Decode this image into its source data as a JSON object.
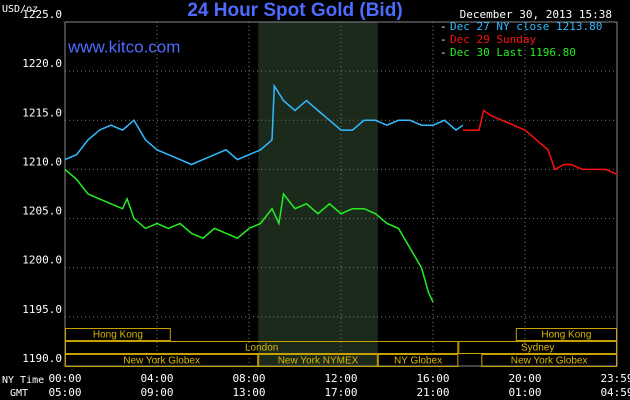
{
  "chart_data": {
    "type": "line",
    "title": "24 Hour Spot Gold (Bid)",
    "timestamp": "December 30, 2013 15:38",
    "website": "www.kitco.com",
    "y_label": "USD/oz",
    "x_label": "NY Time",
    "x2_label": "GMT",
    "xlim": [
      0,
      24
    ],
    "ylim": [
      1190,
      1225
    ],
    "xticks": [
      {
        "value": 0,
        "label": "00:00"
      },
      {
        "value": 4,
        "label": "04:00"
      },
      {
        "value": 8,
        "label": "08:00"
      },
      {
        "value": 12,
        "label": "12:00"
      },
      {
        "value": 16,
        "label": "16:00"
      },
      {
        "value": 20,
        "label": "20:00"
      },
      {
        "value": 24,
        "label": "23:59"
      }
    ],
    "x2ticks": [
      {
        "value": 0,
        "label": "05:00"
      },
      {
        "value": 4,
        "label": "09:00"
      },
      {
        "value": 8,
        "label": "13:00"
      },
      {
        "value": 12,
        "label": "17:00"
      },
      {
        "value": 16,
        "label": "21:00"
      },
      {
        "value": 20,
        "label": "01:00"
      },
      {
        "value": 24,
        "label": "04:59"
      }
    ],
    "yticks": [
      {
        "value": 1190,
        "label": "1190.0"
      },
      {
        "value": 1195,
        "label": "1195.0"
      },
      {
        "value": 1200,
        "label": "1200.0"
      },
      {
        "value": 1205,
        "label": "1205.0"
      },
      {
        "value": 1210,
        "label": "1210.0"
      },
      {
        "value": 1215,
        "label": "1215.0"
      },
      {
        "value": 1220,
        "label": "1220.0"
      },
      {
        "value": 1225,
        "label": "1225.0"
      }
    ],
    "grid": true,
    "shaded_x": [
      8.4,
      13.6
    ],
    "series": [
      {
        "name": "Dec 27 NY close 1213.80",
        "color": "#33bbff",
        "x": [
          0,
          0.5,
          1,
          1.5,
          2,
          2.5,
          3,
          3.5,
          4,
          4.5,
          5,
          5.5,
          6,
          6.5,
          7,
          7.5,
          8,
          8.5,
          9,
          9.1,
          9.5,
          10,
          10.5,
          11,
          11.5,
          12,
          12.5,
          13,
          13.5,
          14,
          14.5,
          15,
          15.5,
          16,
          16.5,
          17,
          17.3
        ],
        "values": [
          1211,
          1211.5,
          1213,
          1214,
          1214.5,
          1214,
          1215,
          1213,
          1212,
          1211.5,
          1211,
          1210.5,
          1211,
          1211.5,
          1212,
          1211,
          1211.5,
          1212,
          1213,
          1218.5,
          1217,
          1216,
          1217,
          1216,
          1215,
          1214,
          1214,
          1215,
          1215,
          1214.5,
          1215,
          1215,
          1214.5,
          1214.5,
          1215,
          1214,
          1214.5
        ]
      },
      {
        "name": "Dec 29 Sunday",
        "color": "#ff1010",
        "x": [
          17.3,
          18,
          18.2,
          18.5,
          19,
          19.5,
          20,
          20.5,
          21,
          21.3,
          21.7,
          22,
          22.5,
          23,
          23.5,
          24
        ],
        "values": [
          1214,
          1214,
          1216,
          1215.5,
          1215,
          1214.5,
          1214,
          1213,
          1212,
          1210,
          1210.5,
          1210.5,
          1210,
          1210,
          1210,
          1209.5
        ]
      },
      {
        "name": "Dec 30 Last 1196.80",
        "color": "#22ee22",
        "x": [
          0,
          0.5,
          1,
          1.5,
          2,
          2.5,
          2.7,
          3,
          3.5,
          4,
          4.5,
          5,
          5.5,
          6,
          6.5,
          7,
          7.5,
          8,
          8.5,
          9,
          9.3,
          9.5,
          10,
          10.5,
          11,
          11.5,
          12,
          12.5,
          13,
          13.5,
          14,
          14.5,
          15,
          15.5,
          15.8,
          16
        ],
        "values": [
          1210,
          1209,
          1207.5,
          1207,
          1206.5,
          1206,
          1207,
          1205,
          1204,
          1204.5,
          1204,
          1204.5,
          1203.5,
          1203,
          1204,
          1203.5,
          1203,
          1204,
          1204.5,
          1206,
          1204.5,
          1207.5,
          1206,
          1206.5,
          1205.5,
          1206.5,
          1205.5,
          1206,
          1206,
          1205.5,
          1204.5,
          1204,
          1202,
          1200,
          1197.5,
          1196.5
        ]
      }
    ],
    "sessions": [
      {
        "name": "Hong Kong",
        "start": 0,
        "end": 4.6,
        "row": 0
      },
      {
        "name": "Hong Kong",
        "start": 19.6,
        "end": 24,
        "row": 0
      },
      {
        "name": "London",
        "start": 0,
        "end": 17.1,
        "row": 1
      },
      {
        "name": "Sydney",
        "start": 17.1,
        "end": 24,
        "row": 1
      },
      {
        "name": "New York Globex",
        "start": 0,
        "end": 8.4,
        "row": 2
      },
      {
        "name": "New York NYMEX",
        "start": 8.4,
        "end": 13.6,
        "row": 2
      },
      {
        "name": "NY Globex",
        "start": 13.6,
        "end": 17.1,
        "row": 2
      },
      {
        "name": "New York Globex",
        "start": 18.1,
        "end": 24,
        "row": 2
      }
    ]
  }
}
